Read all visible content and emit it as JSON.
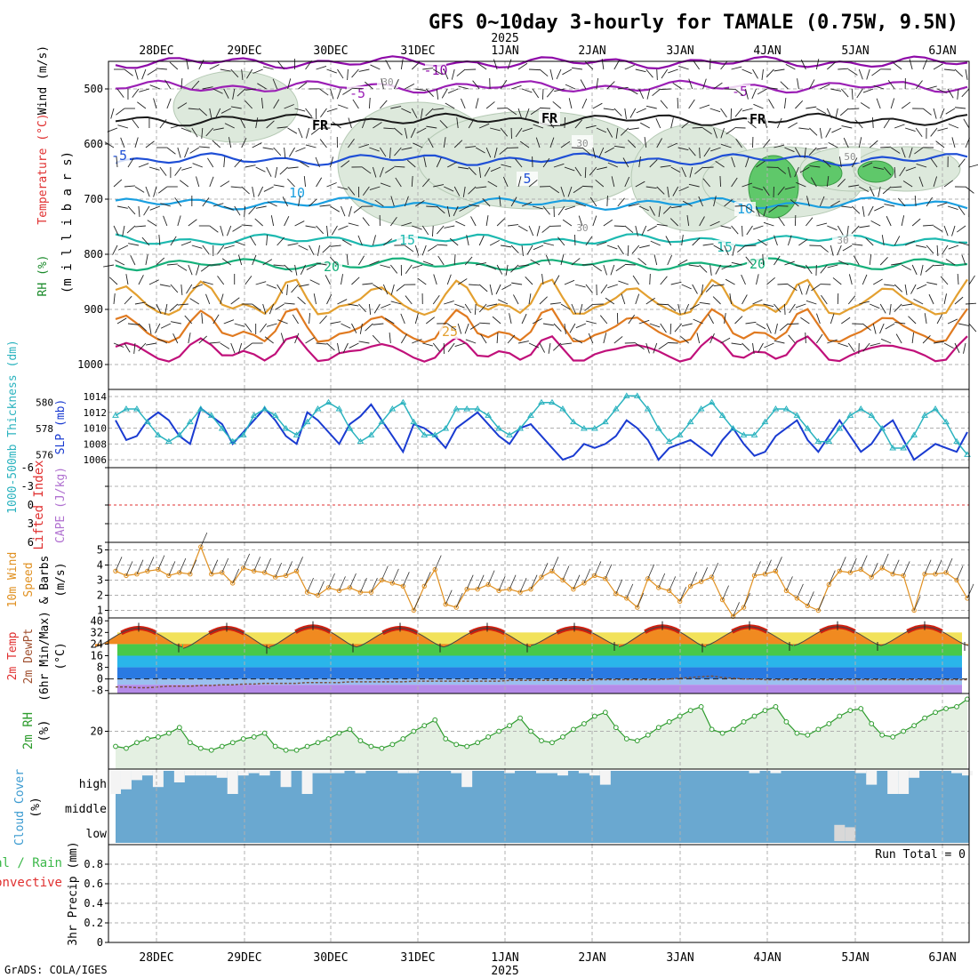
{
  "title": "GFS 0~10day 3-hourly for TAMALE (0.75W, 9.5N)",
  "footer": "GrADS: COLA/IGES",
  "year": "2025",
  "dates": [
    "28DEC",
    "29DEC",
    "30DEC",
    "31DEC",
    "1JAN",
    "2JAN",
    "3JAN",
    "4JAN",
    "5JAN",
    "6JAN"
  ],
  "colors": {
    "grid": "#b0b0b0",
    "tempSeries": [
      "#8e0aa8",
      "#9b1fb5",
      "#1a1a1a",
      "#1f4fd6",
      "#1a9fe0",
      "#1db9b0",
      "#15b07a",
      "#e3a030",
      "#e07a20",
      "#c0107a"
    ],
    "rh": "#3cb84a",
    "slp": "#1a3bd1",
    "thickness": "#2bb3bf",
    "lifted": "#e03030",
    "cape": "#b070d0",
    "wind10m": "#e09020",
    "rh2m": "#2e9c2e",
    "cloudFill": "#6aa8d0",
    "precipTotal": "#3cb84a",
    "precipConv": "#e03030"
  },
  "panels": {
    "upper": {
      "ylabel_parts": [
        "RH (%)",
        "Temperature (°C)",
        "Wind (m/s)"
      ],
      "ylabel_unit": "(m i l l i b a r s)",
      "yticks": [
        "500",
        "600",
        "700",
        "800",
        "900",
        "1000"
      ],
      "contour_labels": [
        "-10",
        "-5",
        "-5",
        "FR",
        "FR",
        "FR",
        "-5",
        "5",
        "10",
        "10",
        "15",
        "15",
        "20",
        "20",
        "25",
        "30",
        "30",
        "50",
        "30",
        "30"
      ]
    },
    "slp": {
      "label_thk": "1000-500mb Thickness (dm)",
      "label_slp": "SLP (mb)",
      "yticks_left": [
        "580",
        "578",
        "576"
      ],
      "yticks_right": [
        "1014",
        "1012",
        "1010",
        "1008",
        "1006"
      ]
    },
    "cape": {
      "label_li": "Lifted Index",
      "label_cape": "CAPE (J/kg)",
      "yticks": [
        "-6",
        "-3",
        "0",
        "3",
        "6"
      ]
    },
    "wind10": {
      "label_a": "10m Wind",
      "label_b": "Speed",
      "label_c": "& Barbs",
      "label_unit": "(m/s)",
      "yticks": [
        "5",
        "4",
        "3",
        "2",
        "1"
      ]
    },
    "temp2m": {
      "label_a": "2m Temp",
      "label_b": "2m DewPt",
      "label_c": "(6hr Min/Max)",
      "label_unit": "(°C)",
      "yticks": [
        "40",
        "32",
        "24",
        "16",
        "8",
        "0",
        "-8"
      ]
    },
    "rh2m": {
      "label_a": "2m RH",
      "label_unit": "(%)",
      "yticks": [
        "20"
      ]
    },
    "cloud": {
      "label_a": "Cloud Cover",
      "label_unit": "(%)",
      "levels": [
        "high",
        "middle",
        "low"
      ]
    },
    "precip": {
      "label_a": "Total / Rain",
      "label_b": "Convective",
      "label_c": "3hr Precip (mm)",
      "yticks": [
        "0.8",
        "0.6",
        "0.4",
        "0.2",
        "0"
      ],
      "run_total": "Run Total = 0"
    }
  },
  "chart_data": {
    "type": "line",
    "x_unit": "3-hourly steps from 27 Dec 2024 12Z",
    "n_steps": 81,
    "slp_mb": {
      "name": "SLP (mb)",
      "values": [
        1011.0,
        1008.5,
        1009.0,
        1011.0,
        1012.0,
        1011.0,
        1009.0,
        1008.0,
        1012.5,
        1011.5,
        1010.5,
        1008.0,
        1009.5,
        1011.0,
        1012.5,
        1011.0,
        1009.0,
        1008.0,
        1012.0,
        1011.0,
        1009.5,
        1008.0,
        1010.5,
        1011.5,
        1013.0,
        1011.0,
        1009.0,
        1007.0,
        1010.5,
        1010.0,
        1009.0,
        1007.5,
        1010.0,
        1011.0,
        1012.0,
        1010.5,
        1009.0,
        1008.0,
        1010.0,
        1010.5,
        1009.0,
        1007.5,
        1006.0,
        1006.5,
        1008.0,
        1007.5,
        1008.0,
        1009.0,
        1011.0,
        1010.0,
        1008.5,
        1006.0,
        1007.5,
        1008.0,
        1008.5,
        1007.5,
        1006.5,
        1008.5,
        1010.0,
        1008.0,
        1006.5,
        1007.0,
        1009.0,
        1010.0,
        1011.0,
        1008.5,
        1007.0,
        1009.0,
        1011.0,
        1009.0,
        1007.0,
        1008.0,
        1010.0,
        1011.0,
        1008.5,
        1006.0,
        1007.0,
        1008.0,
        1007.5,
        1007.0,
        1009.5
      ]
    },
    "thickness_dm": {
      "name": "1000-500mb Thickness (dm)",
      "values": [
        579.0,
        579.5,
        579.5,
        578.5,
        577.5,
        577.0,
        577.5,
        578.5,
        579.5,
        579.0,
        578.0,
        577.0,
        577.5,
        579.0,
        579.5,
        579.0,
        578.0,
        577.5,
        578.5,
        579.5,
        580.0,
        579.5,
        578.0,
        577.0,
        577.5,
        578.5,
        579.5,
        580.0,
        578.5,
        577.5,
        577.5,
        578.0,
        579.5,
        579.5,
        579.5,
        579.0,
        578.0,
        577.5,
        578.0,
        579.0,
        580.0,
        580.0,
        579.5,
        578.5,
        578.0,
        578.0,
        578.5,
        579.5,
        580.5,
        580.5,
        579.5,
        578.0,
        577.0,
        577.5,
        578.5,
        579.5,
        580.0,
        579.0,
        578.0,
        577.5,
        577.5,
        578.5,
        579.5,
        579.5,
        579.0,
        578.0,
        577.0,
        577.0,
        578.0,
        579.0,
        579.5,
        579.0,
        578.0,
        576.5,
        576.5,
        577.5,
        579.0,
        579.5,
        578.5,
        577.0,
        576.0
      ]
    },
    "lifted_index": {
      "name": "Lifted Index",
      "values": [
        0
      ]
    },
    "wind10m_ms": {
      "name": "10m Wind Speed (m/s)",
      "values": [
        3.6,
        3.3,
        3.4,
        3.6,
        3.7,
        3.3,
        3.5,
        3.4,
        5.2,
        3.4,
        3.5,
        2.8,
        3.8,
        3.6,
        3.5,
        3.2,
        3.3,
        3.6,
        2.2,
        2.0,
        2.5,
        2.3,
        2.5,
        2.2,
        2.2,
        3.0,
        2.8,
        2.6,
        1.0,
        2.6,
        3.7,
        1.4,
        1.2,
        2.4,
        2.4,
        2.7,
        2.3,
        2.4,
        2.2,
        2.4,
        3.2,
        3.6,
        3.0,
        2.4,
        2.8,
        3.3,
        3.1,
        2.1,
        1.8,
        1.2,
        3.1,
        2.5,
        2.3,
        1.6,
        2.6,
        2.9,
        3.2,
        1.7,
        0.6,
        1.2,
        3.3,
        3.4,
        3.6,
        2.3,
        1.8,
        1.3,
        1.0,
        2.7,
        3.6,
        3.5,
        3.7,
        3.2,
        3.8,
        3.4,
        3.3,
        1.0,
        3.4,
        3.4,
        3.5,
        3.0,
        1.8
      ]
    },
    "temp2m_max_c": {
      "name": "2m Temp 6hr Max (°C)",
      "values": [
        35,
        35,
        36,
        35,
        35,
        35,
        36,
        36,
        36,
        36
      ]
    },
    "temp2m_min_c": {
      "name": "2m Temp 6hr Min (°C)",
      "values": [
        22,
        21,
        22,
        22,
        22,
        23,
        22,
        23,
        23,
        23
      ]
    },
    "dewpt2m_c": {
      "name": "2m DewPt (°C)",
      "values": [
        -5.5,
        -5.5,
        -6.0,
        -6.0,
        -5.5,
        -5.0,
        -5.0,
        -5.0,
        -4.5,
        -4.5,
        -4.0,
        -4.0,
        -3.5,
        -3.5,
        -3.0,
        -3.0,
        -3.0,
        -3.0,
        -2.5,
        -2.5,
        -2.5,
        -2.5,
        -2.0,
        -2.0,
        -2.0,
        -2.0,
        -2.0,
        -2.0,
        -1.5,
        -1.5,
        -1.5,
        -1.5,
        -1.5,
        -1.5,
        -1.5,
        -1.5,
        -1.5,
        -1.0,
        -1.0,
        -1.0,
        -1.0,
        -1.0,
        -1.0,
        -1.0,
        -1.0,
        -0.5,
        -0.5,
        -0.5,
        -0.5,
        -0.5,
        -0.5,
        -0.5,
        0.0,
        0.5,
        1.0,
        1.5,
        2.0,
        1.0,
        0.5,
        0.0,
        0.0,
        -0.5,
        -0.5,
        -0.5,
        -0.5,
        -0.5,
        -0.5,
        -0.5,
        -0.5,
        -0.5,
        -0.5,
        -0.5,
        -0.5,
        -0.5,
        -0.5,
        -0.5,
        -0.5,
        -0.5,
        -0.5,
        -0.5,
        -0.5
      ]
    },
    "rh2m_pct": {
      "name": "2m RH (%)",
      "values": [
        12,
        11,
        14,
        16,
        17,
        19,
        22,
        14,
        11,
        10,
        12,
        14,
        16,
        17,
        19,
        12,
        10,
        10,
        12,
        14,
        16,
        19,
        21,
        15,
        12,
        11,
        13,
        16,
        20,
        23,
        26,
        16,
        13,
        12,
        14,
        17,
        20,
        23,
        27,
        20,
        15,
        14,
        17,
        21,
        24,
        28,
        30,
        22,
        16,
        15,
        18,
        22,
        25,
        28,
        31,
        33,
        21,
        19,
        21,
        25,
        28,
        31,
        33,
        25,
        19,
        18,
        21,
        24,
        28,
        31,
        32,
        24,
        18,
        17,
        20,
        23,
        27,
        30,
        32,
        33,
        37
      ]
    },
    "cloud_high_pct": {
      "name": "Cloud Cover high (%)",
      "values": [
        100,
        80,
        40,
        20,
        70,
        0,
        50,
        20,
        20,
        20,
        30,
        100,
        20,
        10,
        20,
        0,
        70,
        0,
        100,
        10,
        10,
        10,
        0,
        10,
        0,
        0,
        0,
        10,
        10,
        0,
        0,
        0,
        10,
        70,
        0,
        0,
        0,
        10,
        0,
        0,
        10,
        10,
        20,
        0,
        10,
        20,
        60,
        0,
        0,
        0,
        0,
        0,
        0,
        0,
        0,
        0,
        0,
        0,
        0,
        0,
        10,
        0,
        10,
        0,
        0,
        0,
        0,
        0,
        0,
        0,
        10,
        60,
        0,
        100,
        100,
        30,
        0,
        0,
        0,
        10,
        20
      ]
    },
    "cloud_middle_pct": {
      "name": "Cloud Cover middle (%)",
      "values": [
        0
      ]
    },
    "cloud_low_pct": {
      "name": "Cloud Cover low (%)",
      "values": [
        0,
        0,
        0,
        0,
        0,
        0,
        0,
        0,
        0,
        0,
        0,
        0,
        0,
        0,
        0,
        0,
        0,
        0,
        0,
        0,
        0,
        0,
        0,
        0,
        0,
        0,
        0,
        0,
        0,
        0,
        0,
        0,
        0,
        0,
        0,
        0,
        0,
        0,
        0,
        0,
        0,
        0,
        0,
        0,
        0,
        0,
        0,
        0,
        0,
        0,
        0,
        0,
        0,
        0,
        0,
        0,
        0,
        0,
        0,
        0,
        0,
        0,
        0,
        0,
        0,
        0,
        0,
        0,
        70,
        60,
        0,
        0,
        0,
        0,
        0,
        0,
        0,
        0,
        0,
        0,
        0
      ]
    },
    "precip_3hr_mm": {
      "name": "3hr Precip (mm)",
      "values": [
        0
      ]
    },
    "upper_temp_levels_c": [
      -10,
      -5,
      0,
      5,
      10,
      15,
      20,
      25,
      30,
      35
    ],
    "upper_temp_pressure_mb": [
      452,
      496,
      556,
      628,
      708,
      774,
      818,
      900,
      950,
      985
    ],
    "ylim": {
      "pressure_mb": [
        1000,
        450
      ],
      "slp_mb": [
        1005,
        1014
      ],
      "thickness_dm": [
        575,
        581
      ],
      "lifted_index": [
        -6,
        6
      ],
      "wind10m_ms": [
        0.5,
        5.5
      ],
      "temp2m_c": [
        -10,
        42
      ],
      "rh2m_pct": [
        0,
        40
      ],
      "precip_mm": [
        0,
        1
      ]
    }
  }
}
